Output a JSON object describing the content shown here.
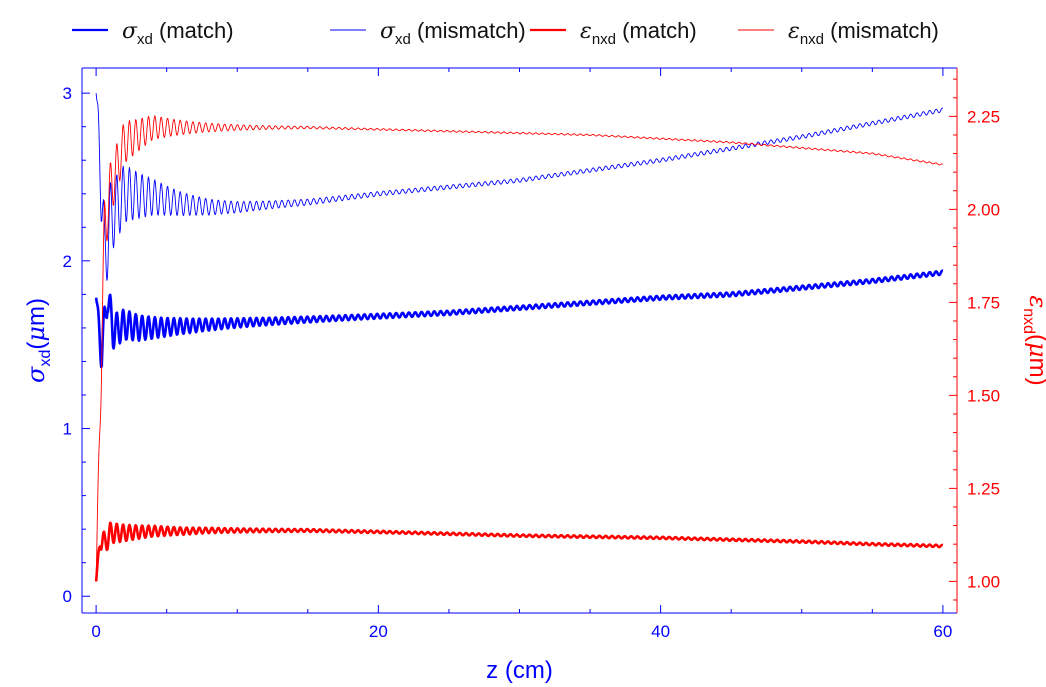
{
  "chart_data": {
    "type": "line",
    "x_axis": {
      "label": "z (cm)",
      "range": [
        -1,
        61
      ],
      "ticks": [
        0,
        20,
        40,
        60
      ],
      "color": "#0000ff"
    },
    "y_left": {
      "symbol": "σ",
      "subscript": "xd",
      "unit_prefix": "(",
      "unit_symbol": "μ",
      "unit_suffix": "m)",
      "range": [
        -0.1,
        3.15
      ],
      "ticks": [
        0,
        1,
        2,
        3
      ],
      "color": "#0000ff"
    },
    "y_right": {
      "symbol": "ε",
      "subscript": "nxd",
      "unit_prefix": "(",
      "unit_symbol": "μ",
      "unit_suffix": "m)",
      "range": [
        0.915,
        2.38
      ],
      "ticks": [
        1.0,
        1.25,
        1.5,
        1.75,
        2.0,
        2.25
      ],
      "tick_labels": [
        "1.00",
        "1.25",
        "1.50",
        "1.75",
        "2.00",
        "2.25"
      ],
      "color": "#ff0000"
    },
    "series": [
      {
        "name": "σxd (match)",
        "symbol": "σ",
        "subscript": "xd",
        "suffix": "(match)",
        "axis": "left",
        "color": "#0000ff",
        "width": 2.6,
        "z": [
          0,
          0.4,
          0.8,
          1.2,
          2,
          3,
          4,
          6,
          8,
          10,
          15,
          20,
          25,
          30,
          35,
          40,
          45,
          50,
          55,
          60
        ],
        "values": [
          1.78,
          1.45,
          1.8,
          1.58,
          1.62,
          1.6,
          1.6,
          1.61,
          1.62,
          1.63,
          1.65,
          1.67,
          1.69,
          1.72,
          1.75,
          1.78,
          1.8,
          1.84,
          1.88,
          1.93
        ],
        "oscillation": {
          "amp_start": 0.13,
          "amp_end": 0.012,
          "decay_cm": 5,
          "period_cm": 0.45
        }
      },
      {
        "name": "σxd (mismatch)",
        "symbol": "σ",
        "subscript": "xd",
        "suffix": "(mismatch)",
        "axis": "left",
        "color": "#0000ff",
        "width": 0.9,
        "z": [
          0,
          0.3,
          0.6,
          1,
          2,
          4,
          6,
          8,
          10,
          15,
          20,
          25,
          30,
          35,
          40,
          45,
          50,
          55,
          60
        ],
        "values": [
          3.0,
          2.6,
          2.0,
          2.25,
          2.4,
          2.38,
          2.34,
          2.32,
          2.32,
          2.35,
          2.4,
          2.44,
          2.48,
          2.54,
          2.6,
          2.67,
          2.74,
          2.82,
          2.9
        ],
        "oscillation": {
          "amp_start": 0.28,
          "amp_end": 0.012,
          "decay_cm": 4,
          "period_cm": 0.45
        }
      },
      {
        "name": "εnxd (match)",
        "symbol": "ε",
        "subscript": "nxd",
        "suffix": "(match)",
        "axis": "right",
        "color": "#ff0000",
        "width": 2.6,
        "z": [
          0,
          0.3,
          0.6,
          1,
          2,
          4,
          6,
          8,
          10,
          15,
          20,
          25,
          30,
          35,
          40,
          45,
          50,
          55,
          60
        ],
        "values": [
          1.0,
          1.12,
          1.1,
          1.13,
          1.13,
          1.135,
          1.135,
          1.137,
          1.137,
          1.137,
          1.133,
          1.128,
          1.123,
          1.12,
          1.117,
          1.112,
          1.107,
          1.1,
          1.095
        ],
        "oscillation": {
          "amp_start": 0.035,
          "amp_end": 0.003,
          "decay_cm": 4,
          "period_cm": 0.45
        }
      },
      {
        "name": "εnxd (mismatch)",
        "symbol": "ε",
        "subscript": "nxd",
        "suffix": "(mismatch)",
        "axis": "right",
        "color": "#ff0000",
        "width": 0.9,
        "z": [
          0,
          0.3,
          0.6,
          1,
          2,
          4,
          6,
          8,
          10,
          15,
          20,
          25,
          30,
          35,
          40,
          45,
          50,
          55,
          60
        ],
        "values": [
          1.0,
          1.5,
          1.95,
          2.05,
          2.18,
          2.22,
          2.22,
          2.22,
          2.22,
          2.22,
          2.215,
          2.21,
          2.205,
          2.2,
          2.19,
          2.18,
          2.165,
          2.15,
          2.12
        ],
        "oscillation": {
          "amp_start": 0.1,
          "amp_end": 0.002,
          "decay_cm": 3.5,
          "period_cm": 0.45
        }
      }
    ]
  }
}
